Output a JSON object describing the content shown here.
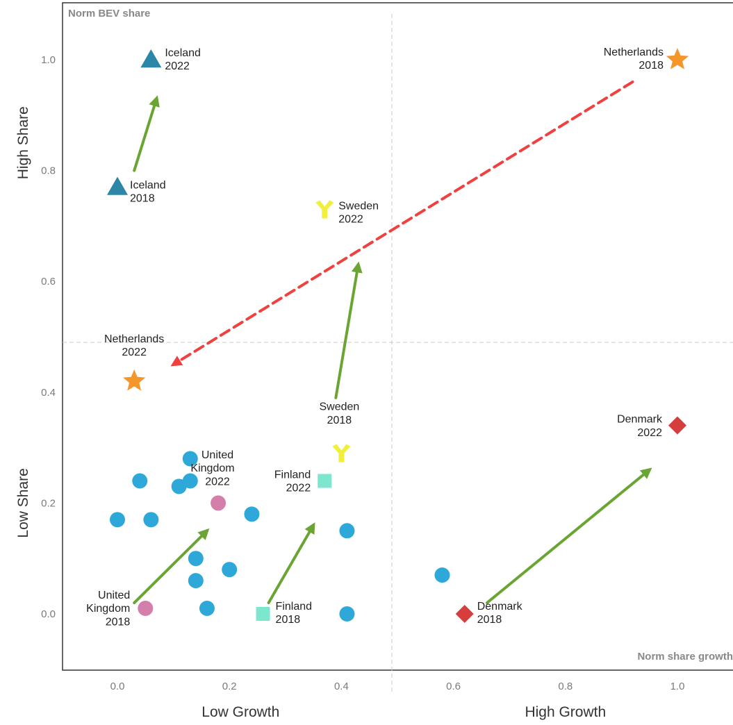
{
  "chart_data": {
    "type": "scatter",
    "title": "",
    "xlabel": "Norm share growth",
    "ylabel": "Norm BEV share",
    "xlim": [
      -0.1,
      1.05
    ],
    "ylim": [
      -0.1,
      1.1
    ],
    "x_ticks": [
      {
        "value": 0.0,
        "label": "0.0"
      },
      {
        "value": 0.2,
        "label": "0.2"
      },
      {
        "value": 0.4,
        "label": "0.4"
      },
      {
        "value": 0.6,
        "label": "0.6"
      },
      {
        "value": 0.8,
        "label": "0.8"
      },
      {
        "value": 1.0,
        "label": "1.0"
      }
    ],
    "y_ticks": [
      {
        "value": 0.0,
        "label": "0.0"
      },
      {
        "value": 0.2,
        "label": "0.2"
      },
      {
        "value": 0.4,
        "label": "0.4"
      },
      {
        "value": 0.6,
        "label": "0.6"
      },
      {
        "value": 0.8,
        "label": "0.8"
      },
      {
        "value": 1.0,
        "label": "1.0"
      }
    ],
    "x_group_labels": [
      {
        "value": 0.22,
        "label": "Low Growth"
      },
      {
        "value": 0.8,
        "label": "High Growth"
      }
    ],
    "y_group_labels": [
      {
        "value": 0.85,
        "label": "High Share"
      },
      {
        "value": 0.2,
        "label": "Low Share"
      }
    ],
    "dividers": {
      "x": 0.49,
      "y": 0.49
    },
    "grid": false,
    "colors": {
      "other": "#2ea8d8",
      "iceland": "#2b86a8",
      "netherlands": "#f5962b",
      "sweden": "#f2ef3c",
      "finland": "#7de6cf",
      "united_kingdom": "#d47fab",
      "denmark": "#d63d3d",
      "arrow_green": "#6aa533",
      "arrow_red": "#f04040"
    },
    "highlighted": [
      {
        "country": "Iceland",
        "year": "2018",
        "x": 0.0,
        "y": 0.77,
        "marker": "triangle",
        "color": "#2b86a8"
      },
      {
        "country": "Iceland",
        "year": "2022",
        "x": 0.06,
        "y": 1.0,
        "marker": "triangle",
        "color": "#2b86a8"
      },
      {
        "country": "Netherlands",
        "year": "2018",
        "x": 1.0,
        "y": 1.0,
        "marker": "star",
        "color": "#f5962b"
      },
      {
        "country": "Netherlands",
        "year": "2022",
        "x": 0.03,
        "y": 0.42,
        "marker": "star",
        "color": "#f5962b"
      },
      {
        "country": "Sweden",
        "year": "2018",
        "x": 0.4,
        "y": 0.29,
        "marker": "tri_down",
        "color": "#f2ef3c"
      },
      {
        "country": "Sweden",
        "year": "2022",
        "x": 0.37,
        "y": 0.73,
        "marker": "tri_down",
        "color": "#f2ef3c"
      },
      {
        "country": "Finland",
        "year": "2018",
        "x": 0.26,
        "y": 0.0,
        "marker": "square",
        "color": "#7de6cf"
      },
      {
        "country": "Finland",
        "year": "2022",
        "x": 0.37,
        "y": 0.24,
        "marker": "square",
        "color": "#7de6cf"
      },
      {
        "country": "United Kingdom",
        "year": "2018",
        "x": 0.05,
        "y": 0.01,
        "marker": "circle",
        "color": "#d47fab"
      },
      {
        "country": "United Kingdom",
        "year": "2022",
        "x": 0.18,
        "y": 0.2,
        "marker": "circle",
        "color": "#d47fab"
      },
      {
        "country": "Denmark",
        "year": "2018",
        "x": 0.62,
        "y": 0.0,
        "marker": "diamond",
        "color": "#d63d3d"
      },
      {
        "country": "Denmark",
        "year": "2022",
        "x": 1.0,
        "y": 0.34,
        "marker": "diamond",
        "color": "#d63d3d"
      }
    ],
    "other_points": [
      {
        "x": 0.0,
        "y": 0.17
      },
      {
        "x": 0.04,
        "y": 0.24
      },
      {
        "x": 0.06,
        "y": 0.17
      },
      {
        "x": 0.11,
        "y": 0.23
      },
      {
        "x": 0.13,
        "y": 0.28
      },
      {
        "x": 0.13,
        "y": 0.24
      },
      {
        "x": 0.14,
        "y": 0.1
      },
      {
        "x": 0.14,
        "y": 0.06
      },
      {
        "x": 0.16,
        "y": 0.01
      },
      {
        "x": 0.2,
        "y": 0.08
      },
      {
        "x": 0.24,
        "y": 0.18
      },
      {
        "x": 0.41,
        "y": 0.15
      },
      {
        "x": 0.41,
        "y": 0.0
      },
      {
        "x": 0.58,
        "y": 0.07
      }
    ],
    "arrows": [
      {
        "country": "Iceland",
        "from": [
          0.03,
          0.8
        ],
        "to": [
          0.07,
          0.93
        ],
        "color": "#6aa533",
        "dashed": false
      },
      {
        "country": "Netherlands",
        "from": [
          0.92,
          0.96
        ],
        "to": [
          0.1,
          0.45
        ],
        "color": "#f04040",
        "dashed": true
      },
      {
        "country": "Sweden",
        "from": [
          0.39,
          0.39
        ],
        "to": [
          0.43,
          0.63
        ],
        "color": "#6aa533",
        "dashed": false
      },
      {
        "country": "Finland",
        "from": [
          0.27,
          0.02
        ],
        "to": [
          0.35,
          0.16
        ],
        "color": "#6aa533",
        "dashed": false
      },
      {
        "country": "United Kingdom",
        "from": [
          0.03,
          0.02
        ],
        "to": [
          0.16,
          0.15
        ],
        "color": "#6aa533",
        "dashed": false
      },
      {
        "country": "Denmark",
        "from": [
          0.66,
          0.02
        ],
        "to": [
          0.95,
          0.26
        ],
        "color": "#6aa533",
        "dashed": false
      }
    ]
  }
}
